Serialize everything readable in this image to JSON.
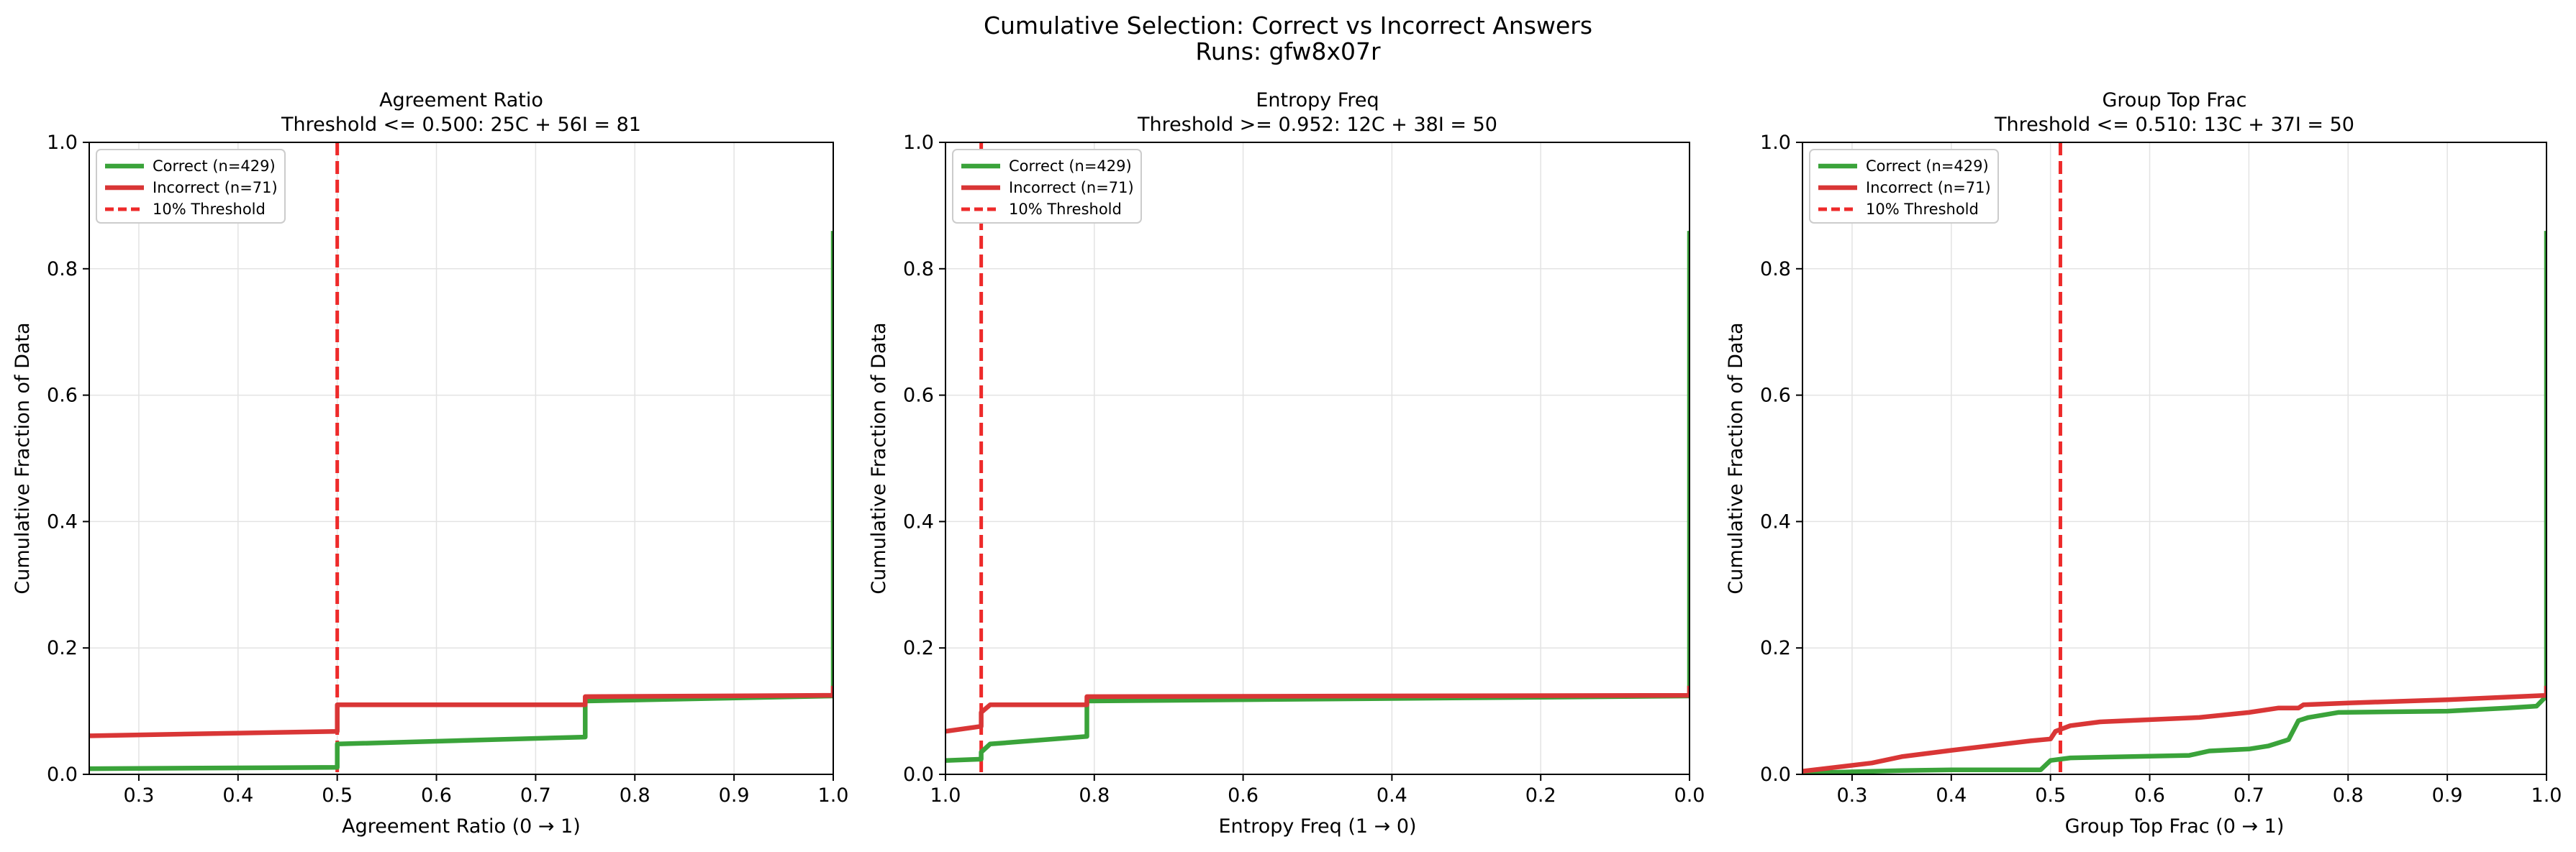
{
  "figure": {
    "title": "Cumulative Selection: Correct vs Incorrect Answers",
    "subtitle": "Runs: gfw8x07r"
  },
  "colors": {
    "correct": "#3aa33a",
    "incorrect": "#d93636",
    "threshold": "#ee2a2a",
    "grid": "#e3e3e3"
  },
  "chart_data": [
    {
      "type": "line",
      "title": "Agreement Ratio",
      "subtitle": "Threshold <= 0.500: 25C + 56I = 81",
      "xlabel": "Agreement Ratio (0 → 1)",
      "ylabel": "Cumulative Fraction of Data",
      "xlim": [
        0.25,
        1.0
      ],
      "ylim": [
        0,
        1.0
      ],
      "xticks": [
        "0.3",
        "0.4",
        "0.5",
        "0.6",
        "0.7",
        "0.8",
        "0.9",
        "1.0"
      ],
      "xtick_values": [
        0.3,
        0.4,
        0.5,
        0.6,
        0.7,
        0.8,
        0.9,
        1.0
      ],
      "yticks": [
        "0.0",
        "0.2",
        "0.4",
        "0.6",
        "0.8",
        "1.0"
      ],
      "ytick_values": [
        0,
        0.2,
        0.4,
        0.6,
        0.8,
        1.0
      ],
      "grid": true,
      "legend_position": "top-left",
      "threshold": {
        "name": "10% Threshold",
        "x": 0.5
      },
      "series": [
        {
          "name": "Correct (n=429)",
          "x": [
            0.25,
            0.5,
            0.5,
            0.75,
            0.75,
            1.0,
            1.0
          ],
          "y": [
            0.009,
            0.011,
            0.048,
            0.059,
            0.116,
            0.124,
            0.86
          ]
        },
        {
          "name": "Incorrect (n=71)",
          "x": [
            0.25,
            0.5,
            0.5,
            0.75,
            0.75,
            1.0,
            1.0
          ],
          "y": [
            0.061,
            0.068,
            0.11,
            0.11,
            0.123,
            0.125,
            0.14
          ]
        }
      ]
    },
    {
      "type": "line",
      "title": "Entropy Freq",
      "subtitle": "Threshold >= 0.952: 12C + 38I = 50",
      "xlabel": "Entropy Freq (1 → 0)",
      "ylabel": "Cumulative Fraction of Data",
      "xlim": [
        1.0,
        0.0
      ],
      "ylim": [
        0,
        1.0
      ],
      "xticks": [
        "1.0",
        "0.8",
        "0.6",
        "0.4",
        "0.2",
        "0.0"
      ],
      "xtick_values": [
        1.0,
        0.8,
        0.6,
        0.4,
        0.2,
        0.0
      ],
      "yticks": [
        "0.0",
        "0.2",
        "0.4",
        "0.6",
        "0.8",
        "1.0"
      ],
      "ytick_values": [
        0,
        0.2,
        0.4,
        0.6,
        0.8,
        1.0
      ],
      "grid": true,
      "legend_position": "top-left",
      "threshold": {
        "name": "10% Threshold",
        "x": 0.952
      },
      "series": [
        {
          "name": "Correct (n=429)",
          "x": [
            1.0,
            0.952,
            0.952,
            0.94,
            0.81,
            0.81,
            0.0,
            0.0
          ],
          "y": [
            0.022,
            0.024,
            0.035,
            0.048,
            0.06,
            0.116,
            0.124,
            0.86
          ]
        },
        {
          "name": "Incorrect (n=71)",
          "x": [
            1.0,
            0.952,
            0.952,
            0.94,
            0.81,
            0.81,
            0.0,
            0.0
          ],
          "y": [
            0.068,
            0.076,
            0.098,
            0.11,
            0.11,
            0.123,
            0.125,
            0.14
          ]
        }
      ]
    },
    {
      "type": "line",
      "title": "Group Top Frac",
      "subtitle": "Threshold <= 0.510: 13C + 37I = 50",
      "xlabel": "Group Top Frac (0 → 1)",
      "ylabel": "Cumulative Fraction of Data",
      "xlim": [
        0.25,
        1.0
      ],
      "ylim": [
        0,
        1.0
      ],
      "xticks": [
        "0.3",
        "0.4",
        "0.5",
        "0.6",
        "0.7",
        "0.8",
        "0.9",
        "1.0"
      ],
      "xtick_values": [
        0.3,
        0.4,
        0.5,
        0.6,
        0.7,
        0.8,
        0.9,
        1.0
      ],
      "yticks": [
        "0.0",
        "0.2",
        "0.4",
        "0.6",
        "0.8",
        "1.0"
      ],
      "ytick_values": [
        0,
        0.2,
        0.4,
        0.6,
        0.8,
        1.0
      ],
      "grid": true,
      "legend_position": "top-left",
      "threshold": {
        "name": "10% Threshold",
        "x": 0.51
      },
      "series": [
        {
          "name": "Correct (n=429)",
          "x": [
            0.25,
            0.3,
            0.35,
            0.4,
            0.49,
            0.5,
            0.52,
            0.64,
            0.66,
            0.7,
            0.72,
            0.74,
            0.745,
            0.75,
            0.76,
            0.79,
            0.9,
            0.96,
            0.99,
            1.0,
            1.0
          ],
          "y": [
            0.002,
            0.004,
            0.006,
            0.007,
            0.007,
            0.022,
            0.026,
            0.03,
            0.037,
            0.04,
            0.045,
            0.055,
            0.07,
            0.085,
            0.09,
            0.098,
            0.1,
            0.105,
            0.108,
            0.124,
            0.86
          ]
        },
        {
          "name": "Incorrect (n=71)",
          "x": [
            0.25,
            0.32,
            0.35,
            0.4,
            0.48,
            0.5,
            0.505,
            0.52,
            0.55,
            0.65,
            0.7,
            0.73,
            0.75,
            0.755,
            0.8,
            0.9,
            1.0,
            1.0
          ],
          "y": [
            0.005,
            0.018,
            0.028,
            0.038,
            0.053,
            0.056,
            0.068,
            0.077,
            0.083,
            0.09,
            0.098,
            0.105,
            0.105,
            0.11,
            0.113,
            0.118,
            0.125,
            0.14
          ]
        }
      ]
    }
  ]
}
